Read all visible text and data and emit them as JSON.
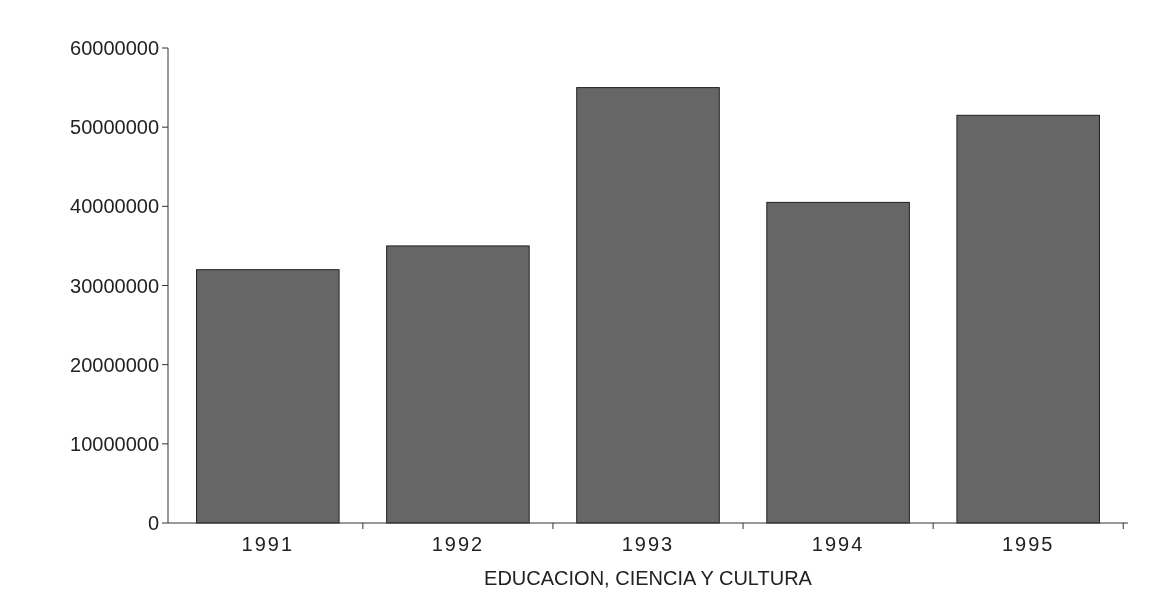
{
  "chart_data": {
    "type": "bar",
    "xlabel": "EDUCACION, CIENCIA Y CULTURA",
    "categories": [
      "1991",
      "1992",
      "1993",
      "1994",
      "1995"
    ],
    "values": [
      32000000,
      35000000,
      55000000,
      40500000,
      51500000
    ],
    "color": "#666666",
    "ylim": [
      0,
      60000000
    ],
    "yticks": [
      0,
      10000000,
      20000000,
      30000000,
      40000000,
      50000000,
      60000000
    ],
    "grid": false
  }
}
